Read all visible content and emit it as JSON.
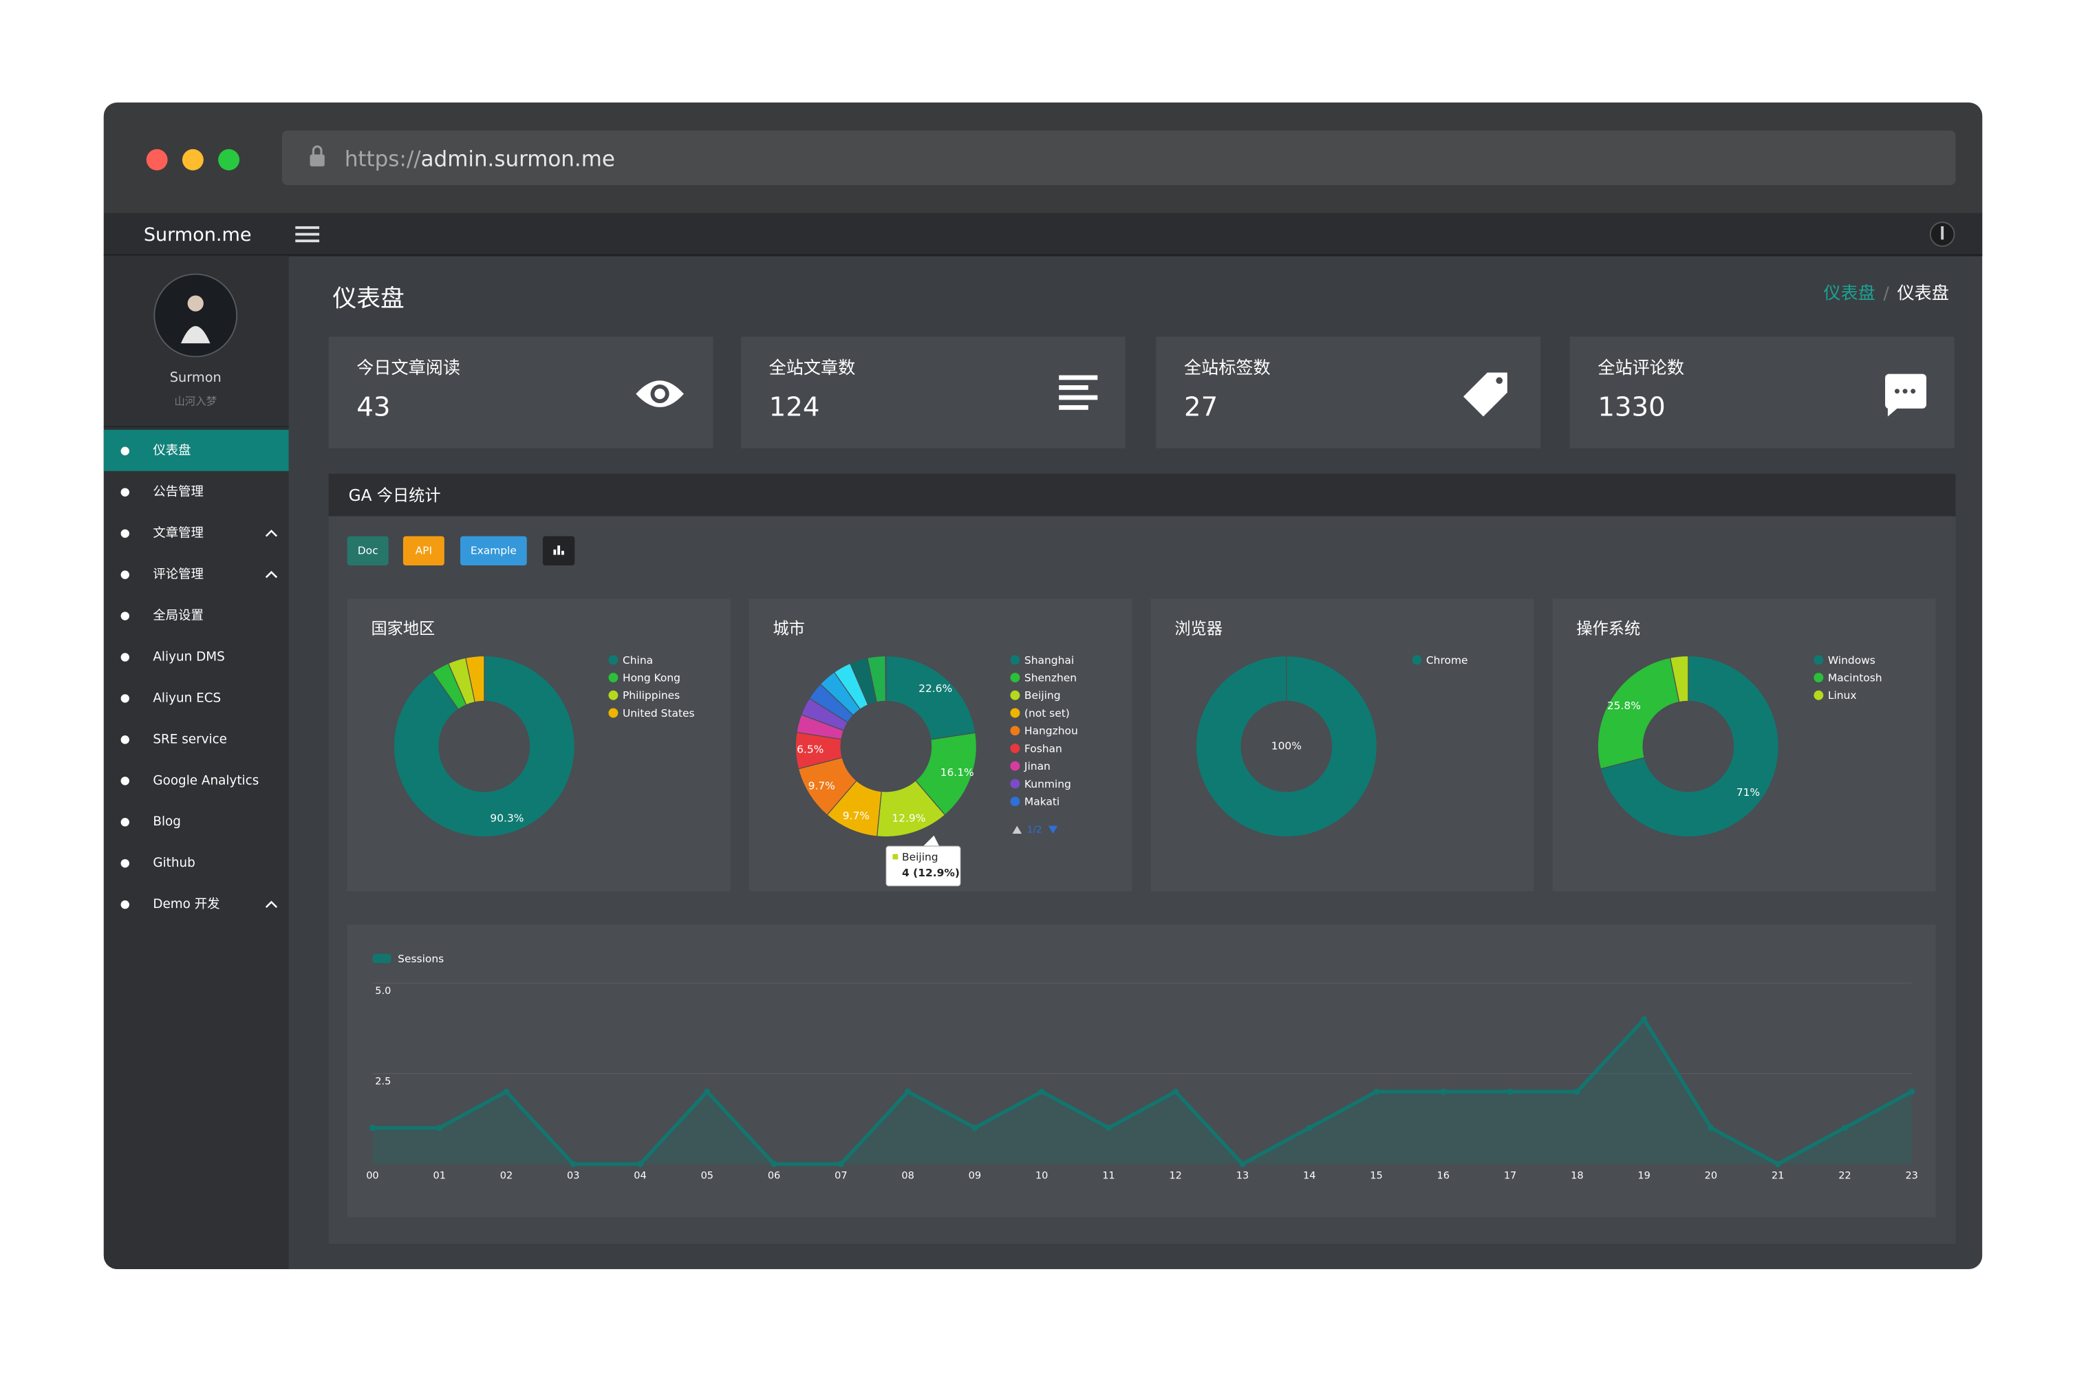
{
  "browser": {
    "url_scheme": "https://",
    "url_host": "admin.surmon.me"
  },
  "header": {
    "brand": "Surmon.me"
  },
  "sidebar": {
    "user": {
      "name": "Surmon",
      "motto": "山河入梦"
    },
    "menu": [
      {
        "label": "仪表盘",
        "active": true
      },
      {
        "label": "公告管理"
      },
      {
        "label": "文章管理",
        "expandable": true
      },
      {
        "label": "评论管理",
        "expandable": true
      },
      {
        "label": "全局设置"
      },
      {
        "label": "Aliyun DMS"
      },
      {
        "label": "Aliyun ECS"
      },
      {
        "label": "SRE service"
      },
      {
        "label": "Google Analytics"
      },
      {
        "label": "Blog"
      },
      {
        "label": "Github"
      },
      {
        "label": "Demo 开发",
        "expandable": true
      }
    ]
  },
  "page": {
    "title": "仪表盘",
    "breadcrumb": [
      "仪表盘",
      "仪表盘"
    ]
  },
  "stats": [
    {
      "label": "今日文章阅读",
      "value": 43
    },
    {
      "label": "全站文章数",
      "value": 124
    },
    {
      "label": "全站标签数",
      "value": 27
    },
    {
      "label": "全站评论数",
      "value": 1330
    }
  ],
  "ga": {
    "title": "GA 今日统计",
    "buttons": [
      "Doc",
      "API",
      "Example"
    ],
    "charts": [
      {
        "type": "pie",
        "title": "国家地区",
        "categories": [
          "China",
          "Hong Kong",
          "Philippines",
          "United States"
        ],
        "values": [
          90.3,
          3.2,
          3.2,
          3.3
        ],
        "value_labels": [
          "90.3%",
          null,
          null,
          null
        ],
        "colors": [
          "#0f7a72",
          "#2bbf3a",
          "#b5d91c",
          "#f0b400"
        ]
      },
      {
        "type": "pie",
        "title": "城市",
        "categories": [
          "Shanghai",
          "Shenzhen",
          "Beijing",
          "(not set)",
          "Hangzhou",
          "Foshan",
          "Jinan",
          "Kunming",
          "Makati",
          null,
          null,
          null,
          null
        ],
        "values": [
          22.6,
          16.1,
          12.9,
          9.7,
          9.7,
          6.5,
          3.2,
          3.2,
          3.2,
          3.2,
          3.2,
          3.2,
          3.2
        ],
        "value_labels": [
          "22.6%",
          "16.1%",
          "12.9%",
          "9.7%",
          "9.7%",
          "6.5%",
          null,
          null,
          null,
          null,
          null,
          null,
          null
        ],
        "colors": [
          "#0f7a72",
          "#2bbf3a",
          "#b5d91c",
          "#f0b400",
          "#f07a1a",
          "#e8383d",
          "#d63ca0",
          "#7a4cc8",
          "#2f6fd6",
          "#1fa9e6",
          "#2fe0f5",
          "#0f6b66",
          "#22b14c"
        ],
        "legend_page": "1/2",
        "tooltip": {
          "label": "Beijing",
          "text": "4 (12.9%)"
        }
      },
      {
        "type": "pie",
        "title": "浏览器",
        "categories": [
          "Chrome"
        ],
        "values": [
          100
        ],
        "value_labels": [
          "100%"
        ],
        "colors": [
          "#0f7a72"
        ]
      },
      {
        "type": "pie",
        "title": "操作系统",
        "categories": [
          "Windows",
          "Macintosh",
          "Linux"
        ],
        "values": [
          71,
          25.8,
          3.2
        ],
        "value_labels": [
          "71%",
          "25.8%",
          null
        ],
        "colors": [
          "#0f7a72",
          "#2bbf3a",
          "#b5d91c"
        ]
      }
    ],
    "sessions": {
      "type": "line",
      "x": [
        "00",
        "01",
        "02",
        "03",
        "04",
        "05",
        "06",
        "07",
        "08",
        "09",
        "10",
        "11",
        "12",
        "13",
        "14",
        "15",
        "16",
        "17",
        "18",
        "19",
        "20",
        "21",
        "22",
        "23"
      ],
      "series": [
        {
          "name": "Sessions",
          "color": "#13756e",
          "values": [
            1,
            1,
            2,
            0,
            0,
            2,
            0,
            0,
            2,
            1,
            2,
            1,
            2,
            0,
            1,
            2,
            2,
            2,
            2,
            4,
            1,
            0,
            1,
            2
          ]
        }
      ],
      "ylim": [
        0,
        5
      ],
      "yticks": [
        {
          "value": 2.5,
          "label": "2.5"
        },
        {
          "value": 5,
          "label": "5.0"
        }
      ],
      "grid": true
    }
  }
}
